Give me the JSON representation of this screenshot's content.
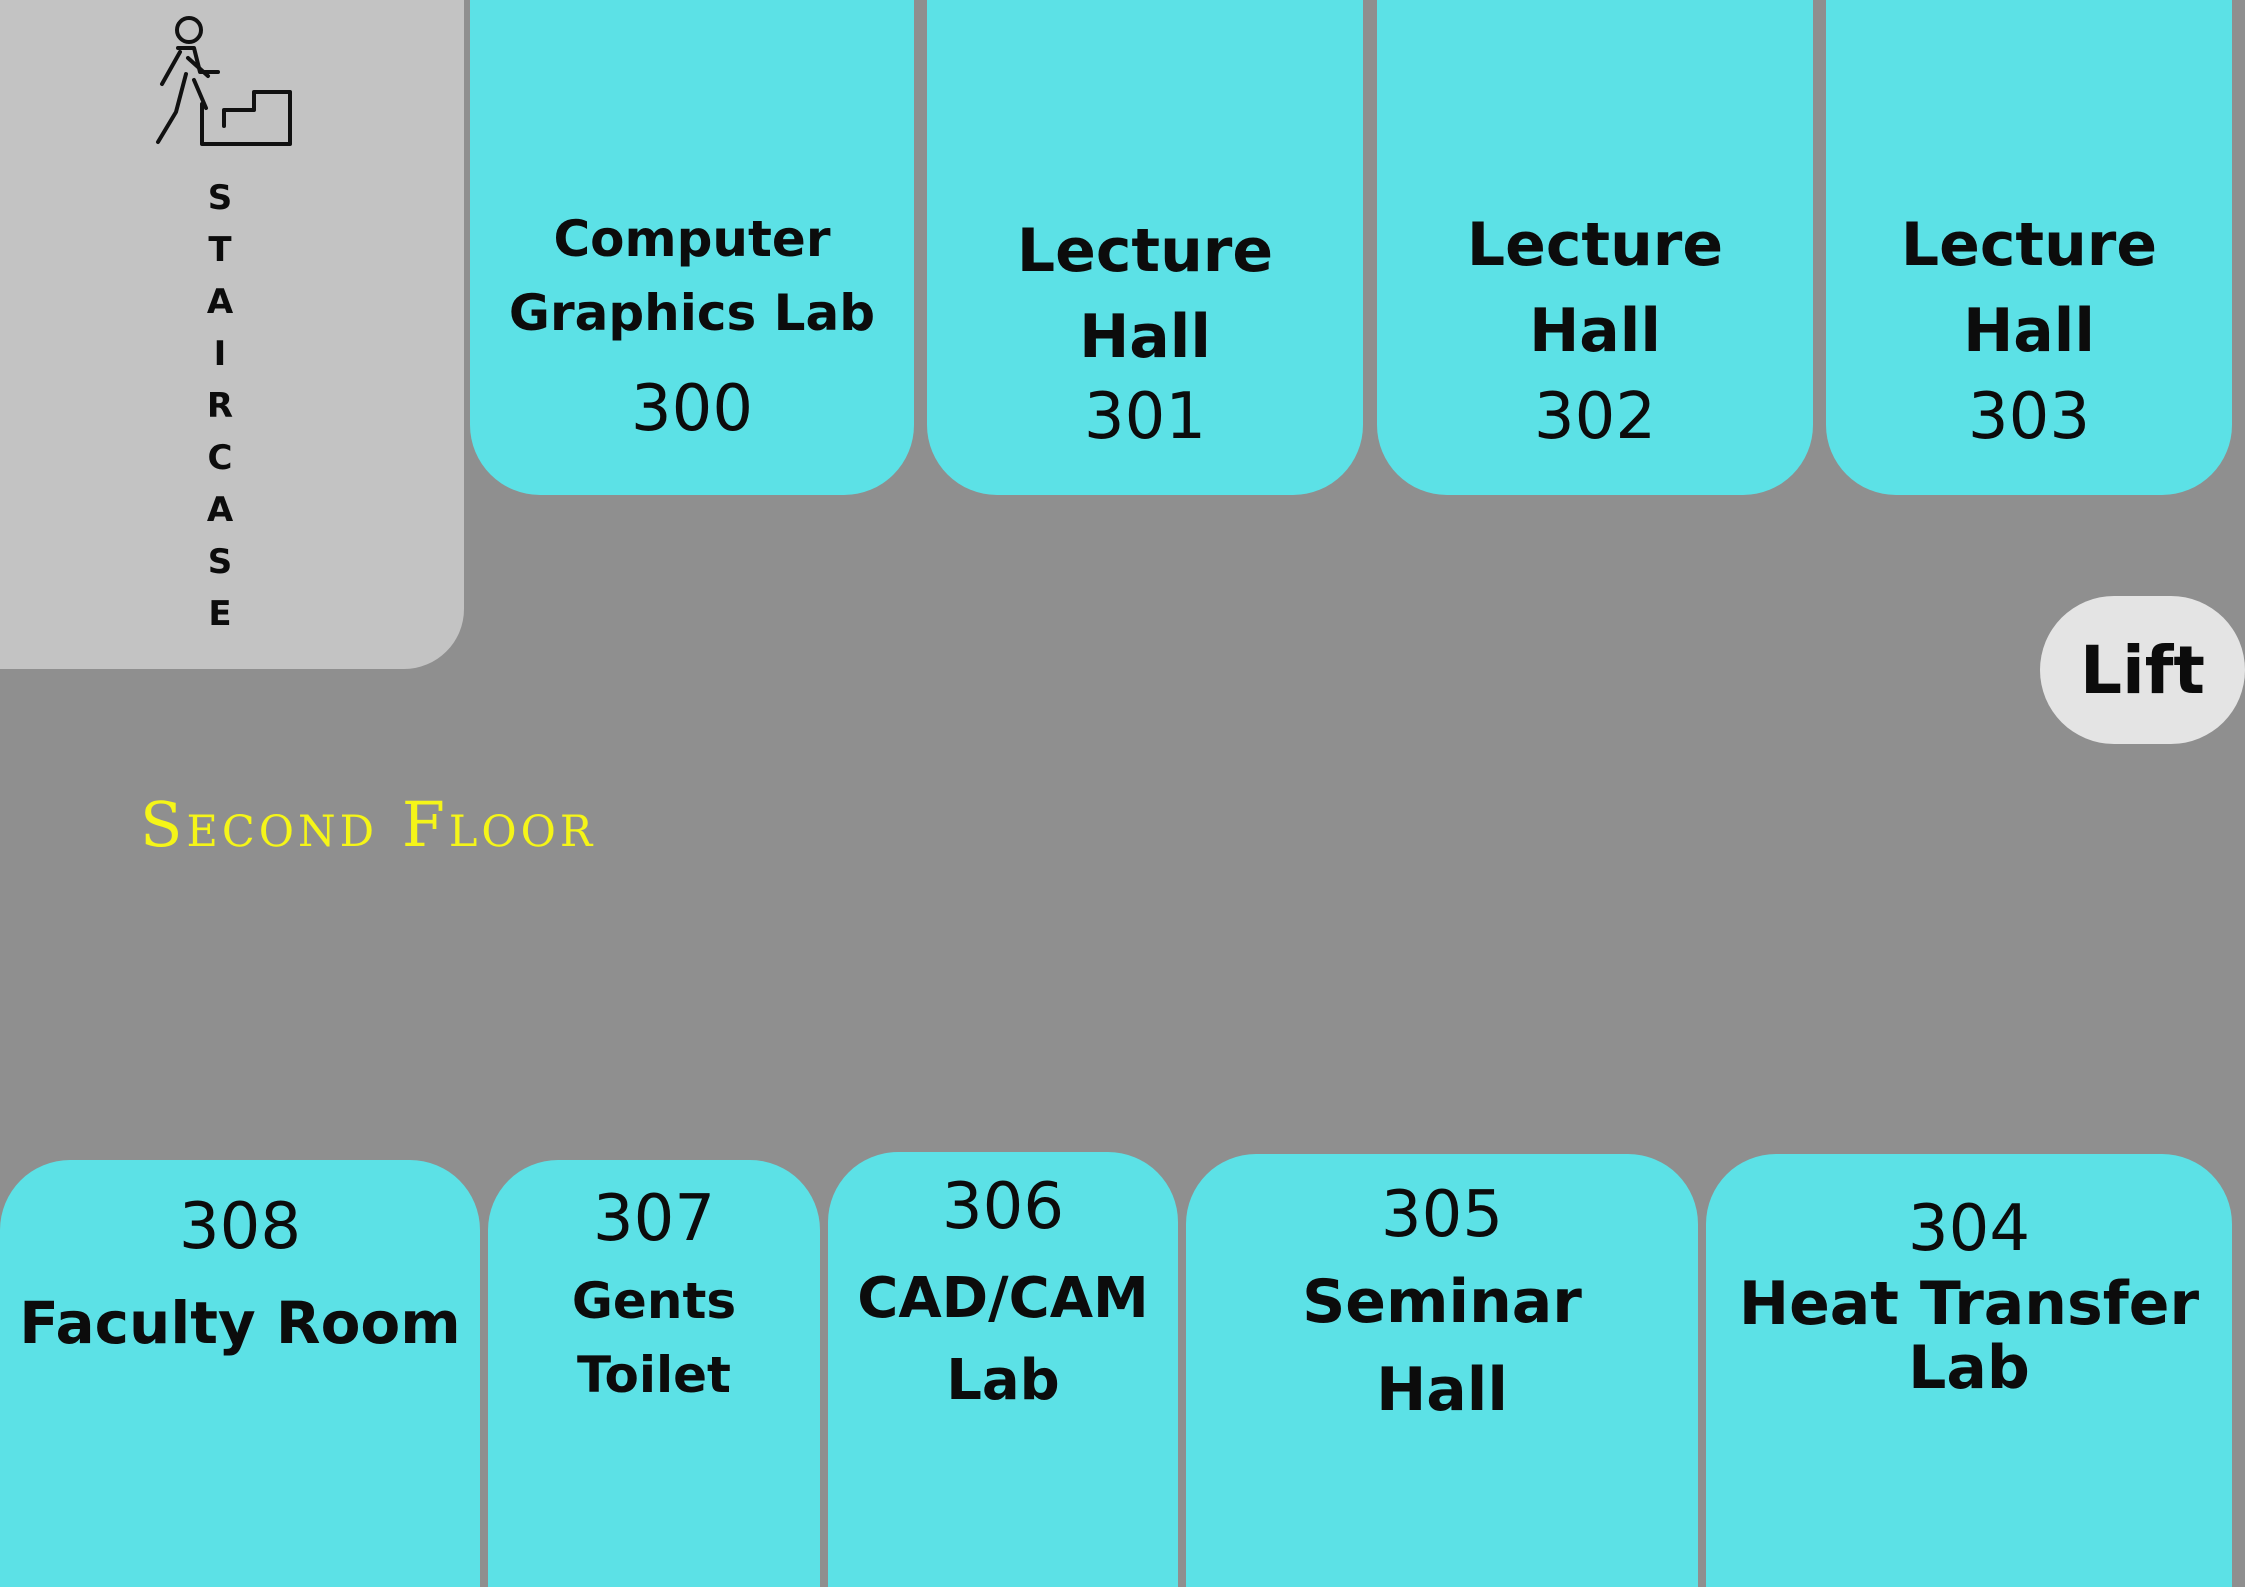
{
  "staircase": {
    "letters": [
      "S",
      "T",
      "A",
      "I",
      "R",
      "C",
      "A",
      "S",
      "E"
    ],
    "icon": "person-climbing-stairs-icon"
  },
  "floor": {
    "title": "Second Floor",
    "title_color": "#f5f518"
  },
  "lift": {
    "label": "Lift"
  },
  "colors": {
    "room": "#5ce1e6",
    "corridor": "#8f8f8f",
    "staircase": "#c3c3c3",
    "lift": "#e4e4e4"
  },
  "rooms_top": [
    {
      "name_lines": [
        "Computer",
        "Graphics Lab"
      ],
      "number": "300"
    },
    {
      "name_lines": [
        "Lecture",
        "Hall"
      ],
      "number": "301"
    },
    {
      "name_lines": [
        "Lecture",
        "Hall"
      ],
      "number": "302"
    },
    {
      "name_lines": [
        "Lecture",
        "Hall"
      ],
      "number": "303"
    }
  ],
  "rooms_bottom": [
    {
      "number": "308",
      "name_lines": [
        "Faculty Room"
      ]
    },
    {
      "number": "307",
      "name_lines": [
        "Gents",
        "Toilet"
      ]
    },
    {
      "number": "306",
      "name_lines": [
        "CAD/CAM",
        "Lab"
      ]
    },
    {
      "number": "305",
      "name_lines": [
        "Seminar",
        "Hall"
      ]
    },
    {
      "number": "304",
      "name_lines": [
        "Heat Transfer",
        "Lab"
      ]
    }
  ]
}
